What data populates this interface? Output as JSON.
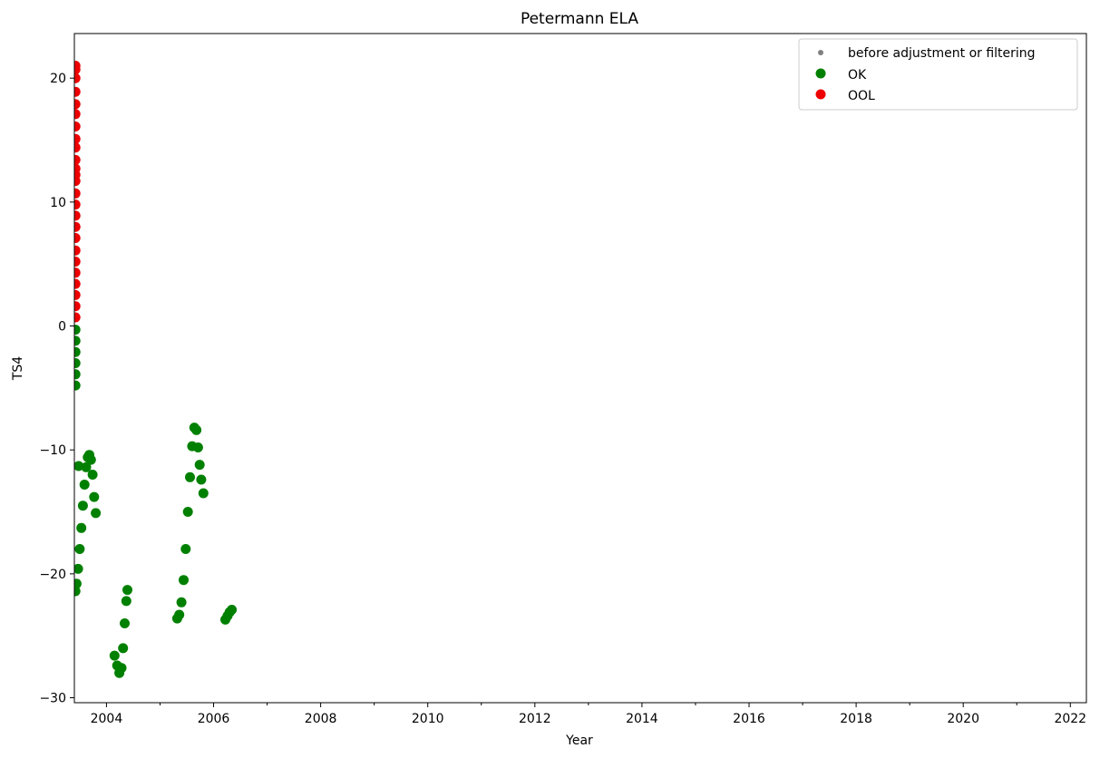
{
  "chart_data": {
    "type": "scatter",
    "title": "Petermann ELA",
    "xlabel": "Year",
    "ylabel": "TS4",
    "xlim": [
      2003.4,
      2022.3
    ],
    "ylim": [
      -30.4,
      23.6
    ],
    "x_ticks": [
      "2004",
      "2006",
      "2008",
      "2010",
      "2012",
      "2014",
      "2016",
      "2018",
      "2020",
      "2022"
    ],
    "y_ticks": [
      "20",
      "10",
      "0",
      "−10",
      "−20",
      "−30"
    ],
    "grid": false,
    "legend_position": "top-right",
    "legend": [
      "before adjustment or filtering",
      "OK",
      "OOL"
    ],
    "series": [
      {
        "name": "before adjustment or filtering",
        "color": "#808080",
        "points": []
      },
      {
        "name": "OK",
        "color": "#008000",
        "points": [
          [
            2003.42,
            -0.3
          ],
          [
            2003.42,
            -1.2
          ],
          [
            2003.42,
            -2.1
          ],
          [
            2003.42,
            -3.0
          ],
          [
            2003.42,
            -3.9
          ],
          [
            2003.42,
            -4.8
          ],
          [
            2003.42,
            -21.4
          ],
          [
            2003.44,
            -20.8
          ],
          [
            2003.47,
            -19.6
          ],
          [
            2003.5,
            -18.0
          ],
          [
            2003.53,
            -16.3
          ],
          [
            2003.56,
            -14.5
          ],
          [
            2003.59,
            -12.8
          ],
          [
            2003.62,
            -11.4
          ],
          [
            2003.65,
            -10.6
          ],
          [
            2003.68,
            -10.4
          ],
          [
            2003.71,
            -10.8
          ],
          [
            2003.74,
            -12.0
          ],
          [
            2003.77,
            -13.8
          ],
          [
            2003.8,
            -15.1
          ],
          [
            2003.48,
            -11.3
          ],
          [
            2004.15,
            -26.6
          ],
          [
            2004.2,
            -27.4
          ],
          [
            2004.24,
            -28.0
          ],
          [
            2004.28,
            -27.6
          ],
          [
            2004.31,
            -26.0
          ],
          [
            2004.34,
            -24.0
          ],
          [
            2004.37,
            -22.2
          ],
          [
            2004.39,
            -21.3
          ],
          [
            2005.32,
            -23.6
          ],
          [
            2005.36,
            -23.3
          ],
          [
            2005.4,
            -22.3
          ],
          [
            2005.44,
            -20.5
          ],
          [
            2005.48,
            -18.0
          ],
          [
            2005.52,
            -15.0
          ],
          [
            2005.56,
            -12.2
          ],
          [
            2005.6,
            -9.7
          ],
          [
            2005.64,
            -8.2
          ],
          [
            2005.68,
            -8.4
          ],
          [
            2005.71,
            -9.8
          ],
          [
            2005.74,
            -11.2
          ],
          [
            2005.77,
            -12.4
          ],
          [
            2005.81,
            -13.5
          ],
          [
            2006.22,
            -23.7
          ],
          [
            2006.26,
            -23.4
          ],
          [
            2006.3,
            -23.1
          ],
          [
            2006.34,
            -22.9
          ]
        ]
      },
      {
        "name": "OOL",
        "color": "#ee0000",
        "points": [
          [
            2003.42,
            0.7
          ],
          [
            2003.42,
            1.6
          ],
          [
            2003.42,
            2.5
          ],
          [
            2003.42,
            3.4
          ],
          [
            2003.42,
            4.3
          ],
          [
            2003.42,
            5.2
          ],
          [
            2003.42,
            6.1
          ],
          [
            2003.42,
            7.1
          ],
          [
            2003.42,
            8.0
          ],
          [
            2003.42,
            8.9
          ],
          [
            2003.42,
            9.8
          ],
          [
            2003.42,
            10.7
          ],
          [
            2003.42,
            11.7
          ],
          [
            2003.42,
            12.2
          ],
          [
            2003.42,
            12.7
          ],
          [
            2003.42,
            13.4
          ],
          [
            2003.42,
            14.4
          ],
          [
            2003.42,
            15.1
          ],
          [
            2003.42,
            16.1
          ],
          [
            2003.42,
            17.1
          ],
          [
            2003.42,
            17.9
          ],
          [
            2003.42,
            18.9
          ],
          [
            2003.42,
            20.0
          ],
          [
            2003.42,
            20.7
          ],
          [
            2003.42,
            21.0
          ]
        ]
      }
    ]
  }
}
